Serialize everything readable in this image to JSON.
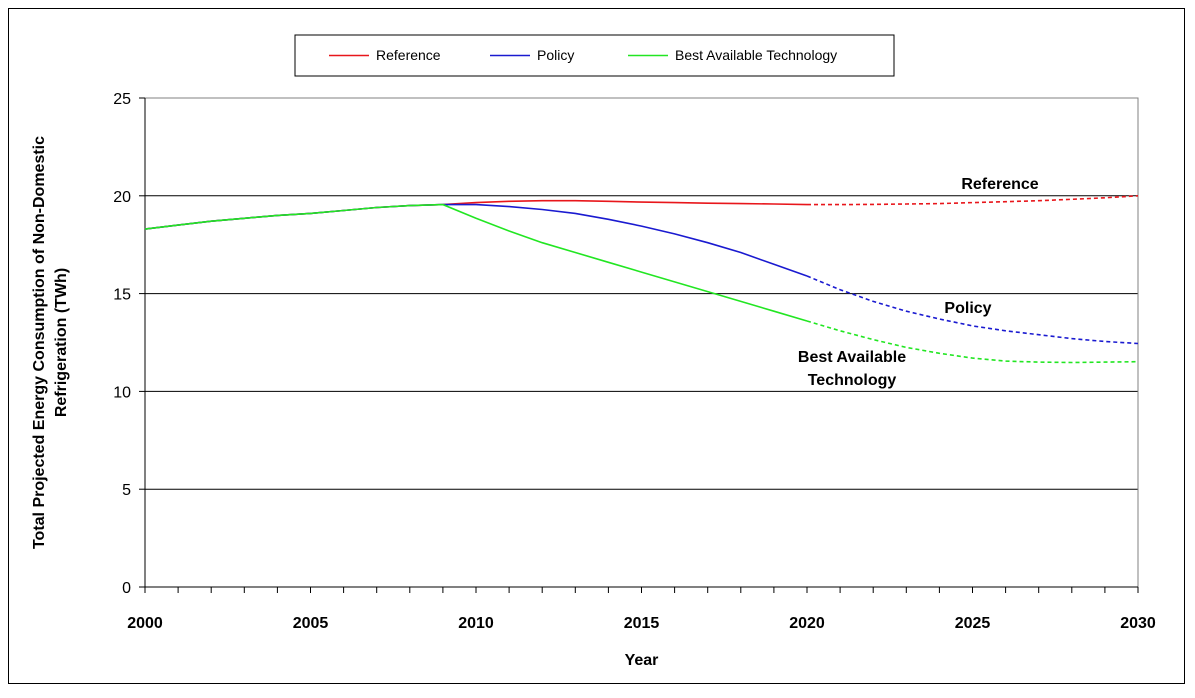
{
  "chart_data": {
    "type": "line",
    "title": "",
    "xlabel": "Year",
    "ylabel": "Total Projected Energy Consumption of Non-Domestic Refrigeration (TWh)",
    "ylabel_lines": [
      "Total Projected Energy Consumption of Non-Domestic",
      "Refrigeration (TWh)"
    ],
    "xlim": [
      2000,
      2030
    ],
    "ylim": [
      0,
      25
    ],
    "x_ticks": [
      2000,
      2005,
      2010,
      2015,
      2020,
      2025,
      2030
    ],
    "x_tick_labels": [
      "2000",
      "2005",
      "2010",
      "2015",
      "2020",
      "2025",
      "2030"
    ],
    "y_ticks": [
      0,
      5,
      10,
      15,
      20,
      25
    ],
    "y_tick_labels": [
      "0",
      "5",
      "10",
      "15",
      "20",
      "25"
    ],
    "grid": "horizontal major",
    "legend_position": "top",
    "projection_dashed_from": 2020,
    "series": [
      {
        "name": "Reference",
        "color": "#e8161b",
        "x": [
          2000,
          2001,
          2002,
          2003,
          2004,
          2005,
          2006,
          2007,
          2008,
          2009,
          2010,
          2011,
          2012,
          2013,
          2014,
          2015,
          2016,
          2017,
          2018,
          2019,
          2020,
          2021,
          2022,
          2023,
          2024,
          2025,
          2026,
          2027,
          2028,
          2029,
          2030
        ],
        "values": [
          18.3,
          18.5,
          18.7,
          18.85,
          19.0,
          19.1,
          19.25,
          19.4,
          19.5,
          19.55,
          19.65,
          19.72,
          19.75,
          19.75,
          19.72,
          19.68,
          19.65,
          19.62,
          19.6,
          19.58,
          19.55,
          19.55,
          19.56,
          19.58,
          19.6,
          19.65,
          19.7,
          19.75,
          19.82,
          19.9,
          20.0
        ]
      },
      {
        "name": "Policy",
        "color": "#1a1ad0",
        "x": [
          2000,
          2001,
          2002,
          2003,
          2004,
          2005,
          2006,
          2007,
          2008,
          2009,
          2010,
          2011,
          2012,
          2013,
          2014,
          2015,
          2016,
          2017,
          2018,
          2019,
          2020,
          2021,
          2022,
          2023,
          2024,
          2025,
          2026,
          2027,
          2028,
          2029,
          2030
        ],
        "values": [
          18.3,
          18.5,
          18.7,
          18.85,
          19.0,
          19.1,
          19.25,
          19.4,
          19.5,
          19.55,
          19.55,
          19.45,
          19.3,
          19.1,
          18.8,
          18.45,
          18.05,
          17.6,
          17.1,
          16.5,
          15.9,
          15.2,
          14.6,
          14.1,
          13.7,
          13.35,
          13.1,
          12.9,
          12.7,
          12.55,
          12.45
        ]
      },
      {
        "name": "Best Available Technology",
        "color": "#22e622",
        "x": [
          2000,
          2001,
          2002,
          2003,
          2004,
          2005,
          2006,
          2007,
          2008,
          2009,
          2010,
          2011,
          2012,
          2013,
          2014,
          2015,
          2016,
          2017,
          2018,
          2019,
          2020,
          2021,
          2022,
          2023,
          2024,
          2025,
          2026,
          2027,
          2028,
          2029,
          2030
        ],
        "values": [
          18.3,
          18.5,
          18.7,
          18.85,
          19.0,
          19.1,
          19.25,
          19.4,
          19.5,
          19.55,
          18.85,
          18.2,
          17.6,
          17.1,
          16.6,
          16.1,
          15.6,
          15.1,
          14.6,
          14.1,
          13.6,
          13.1,
          12.65,
          12.25,
          11.95,
          11.7,
          11.55,
          11.5,
          11.48,
          11.5,
          11.52
        ]
      }
    ],
    "annotations": [
      {
        "text": "Reference",
        "lines": [
          "Reference"
        ]
      },
      {
        "text": "Policy",
        "lines": [
          "Policy"
        ]
      },
      {
        "text": "Best Available Technology",
        "lines": [
          "Best Available",
          "Technology"
        ]
      }
    ]
  }
}
